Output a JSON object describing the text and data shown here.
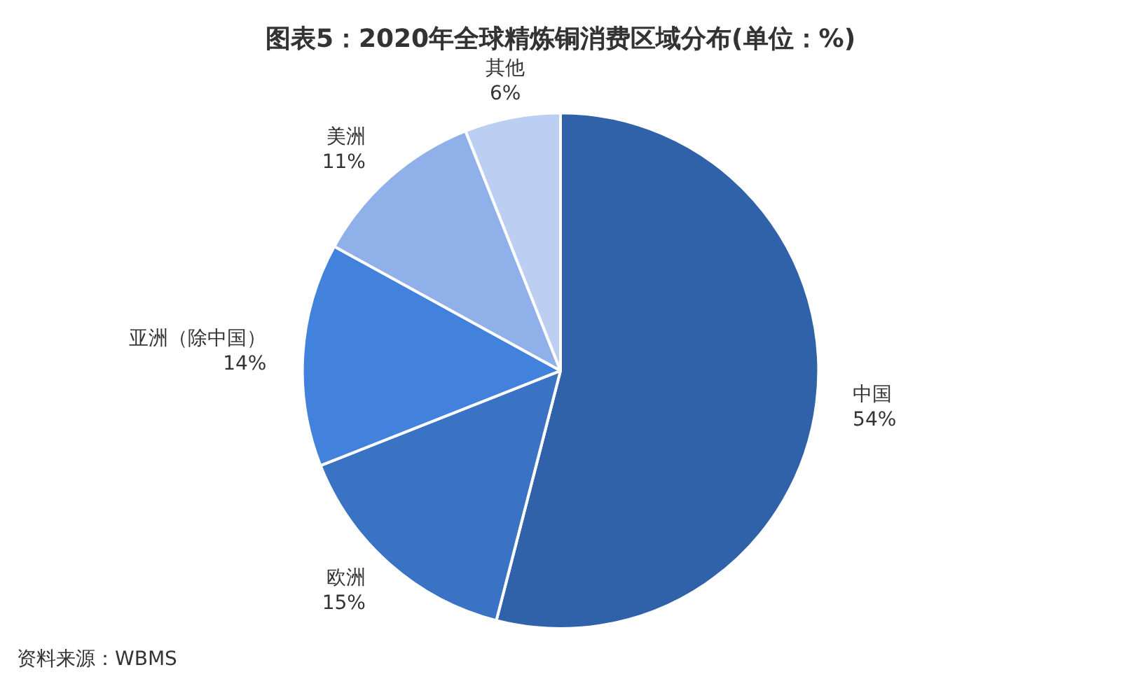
{
  "chart_data": {
    "type": "pie",
    "title": "图表5：2020年全球精炼铜消费区域分布(单位：%)",
    "categories": [
      "中国",
      "欧洲",
      "亚洲（除中国）",
      "美洲",
      "其他"
    ],
    "values": [
      54,
      15,
      14,
      11,
      6
    ],
    "colors": [
      "#2f62a8",
      "#3a72c4",
      "#4282dc",
      "#8fb0e8",
      "#bccff2"
    ],
    "value_labels": [
      "54%",
      "15%",
      "14%",
      "11%",
      "6%"
    ],
    "legend": false,
    "annotations": [
      "资料来源：WBMS"
    ]
  }
}
